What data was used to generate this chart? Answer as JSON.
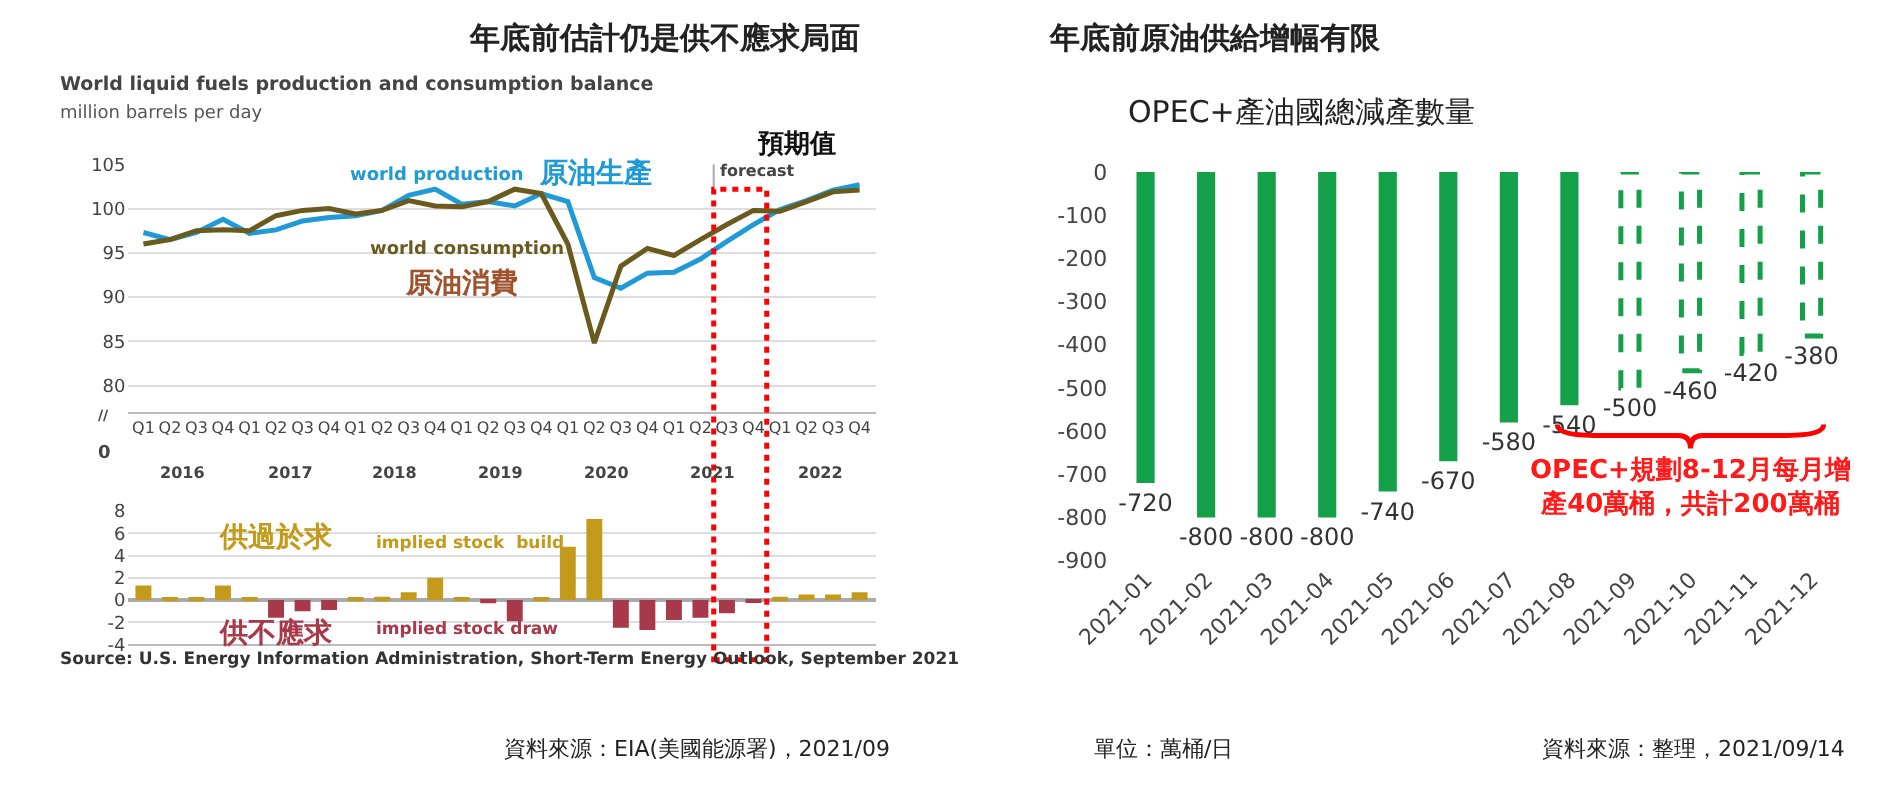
{
  "chart_data": [
    {
      "type": "line",
      "title": "年底前估計仍是供不應求局面",
      "subtitle": "World liquid fuels production and consumption balance",
      "ylabel": "million barrels per day",
      "categories": [
        "Q1",
        "Q2",
        "Q3",
        "Q4",
        "Q1",
        "Q2",
        "Q3",
        "Q4",
        "Q1",
        "Q2",
        "Q3",
        "Q4",
        "Q1",
        "Q2",
        "Q3",
        "Q4",
        "Q1",
        "Q2",
        "Q3",
        "Q4",
        "Q1",
        "Q2",
        "Q3",
        "Q4",
        "Q1",
        "Q2",
        "Q3",
        "Q4"
      ],
      "series": [
        {
          "name": "world production",
          "color": "#1f9ad6",
          "values": [
            97.3,
            96.5,
            97.3,
            98.8,
            97.2,
            97.6,
            98.6,
            99.0,
            99.2,
            99.8,
            101.5,
            102.2,
            100.5,
            100.8,
            100.3,
            101.7,
            100.8,
            92.2,
            91.0,
            92.7,
            92.8,
            94.3,
            96.3,
            98.2,
            99.9,
            100.9,
            102.1,
            102.7
          ]
        },
        {
          "name": "world consumption",
          "color": "#6b5a1e",
          "values": [
            96.0,
            96.5,
            97.5,
            97.6,
            97.5,
            99.2,
            99.8,
            100.0,
            99.4,
            99.8,
            100.9,
            100.3,
            100.2,
            100.8,
            102.2,
            101.7,
            96.0,
            84.8,
            93.5,
            95.5,
            94.7,
            96.5,
            98.2,
            99.8,
            99.7,
            100.8,
            101.9,
            102.1
          ]
        }
      ],
      "ylim": [
        77,
        105
      ],
      "yticks": [
        80,
        85,
        90,
        95,
        100,
        105
      ],
      "grid": "y",
      "legend": false,
      "annotations": [
        "原油生產",
        "原油消費",
        "預期值",
        "forecast",
        "//",
        "0",
        "2016",
        "2017",
        "2018",
        "2019",
        "2020",
        "2021",
        "2022"
      ]
    },
    {
      "type": "bar",
      "categories": [
        null,
        null,
        null,
        null,
        null,
        null,
        null,
        null,
        null,
        null,
        null,
        null,
        null,
        null,
        null,
        null,
        null,
        null,
        null,
        null,
        null,
        null,
        null,
        null,
        null,
        null,
        null,
        null
      ],
      "values": [
        1.3,
        0.2,
        0.1,
        1.3,
        0.1,
        -1.6,
        -1.0,
        -0.9,
        0.1,
        0.3,
        0.7,
        2.0,
        0.1,
        -0.3,
        -1.9,
        0.1,
        4.8,
        7.3,
        -2.5,
        -2.7,
        -1.8,
        -1.6,
        -1.2,
        -0.1,
        0.3,
        0.5,
        0.5,
        0.7
      ],
      "colors": [
        "#c49a1a",
        "#c49a1a",
        "#c49a1a",
        "#c49a1a",
        "#c49a1a",
        "#a8394b",
        "#a8394b",
        "#a8394b",
        "#c49a1a",
        "#c49a1a",
        "#c49a1a",
        "#c49a1a",
        "#c49a1a",
        "#a8394b",
        "#a8394b",
        "#c49a1a",
        "#c49a1a",
        "#c49a1a",
        "#a8394b",
        "#a8394b",
        "#a8394b",
        "#a8394b",
        "#a8394b",
        "#a8394b",
        "#c49a1a",
        "#c49a1a",
        "#c49a1a",
        "#c49a1a"
      ],
      "ylim": [
        -4,
        8
      ],
      "yticks": [
        -4,
        -2,
        0,
        2,
        4,
        6,
        8
      ],
      "grid": "y",
      "legend": false,
      "annotations": [
        "供過於求",
        "implied stock  build",
        "供不應求",
        "implied stock draw",
        "Source: U.S. Energy Information Administration, Short-Term Energy Outlook, September 2021",
        "資料來源：EIA(美國能源署)，2021/09"
      ]
    },
    {
      "type": "bar",
      "title": "年底前原油供給增幅有限",
      "subtitle": "OPEC+產油國總減產數量",
      "categories": [
        "2021-01",
        "2021-02",
        "2021-03",
        "2021-04",
        "2021-05",
        "2021-06",
        "2021-07",
        "2021-08",
        "2021-09",
        "2021-10",
        "2021-11",
        "2021-12"
      ],
      "series": [
        {
          "color": "#14a048",
          "values": [
            -720,
            -800,
            -800,
            -800,
            -740,
            -670,
            -580,
            -540,
            null,
            null,
            null,
            null
          ]
        },
        {
          "color": "#14a048",
          "line_style": "dashed",
          "values": [
            null,
            null,
            null,
            null,
            null,
            null,
            null,
            null,
            -500,
            -460,
            -420,
            -380
          ]
        }
      ],
      "ylim": [
        -900,
        0
      ],
      "yticks": [
        -900,
        -800,
        -700,
        -600,
        -500,
        -400,
        -300,
        -200,
        -100,
        0
      ],
      "grid": false,
      "legend": false,
      "data_labels": true,
      "annotations": [
        "OPEC+規劃8-12月每月增產40萬桶，共計200萬桶",
        "單位：萬桶/日",
        "資料來源：整理，2021/09/14"
      ]
    }
  ]
}
